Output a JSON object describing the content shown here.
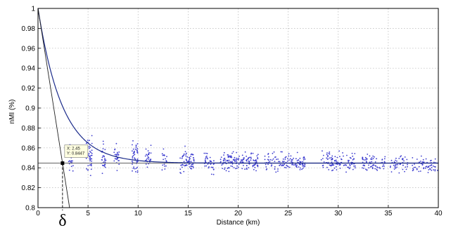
{
  "chart_data": {
    "type": "scatter",
    "xlabel": "Distance (km)",
    "ylabel": "nMI (%)",
    "xlim": [
      0,
      40
    ],
    "ylim": [
      0.8,
      1.0
    ],
    "x_ticks": [
      "0",
      "5",
      "10",
      "15",
      "20",
      "25",
      "30",
      "35",
      "40"
    ],
    "y_ticks": [
      "0.8",
      "0.82",
      "0.84",
      "0.86",
      "0.88",
      "0.9",
      "0.92",
      "0.94",
      "0.96",
      "0.98",
      "1"
    ],
    "grid": true,
    "colors": {
      "points": "#3b3bcf",
      "fit": "#1a2a8a",
      "asymptote": "#7a7a7a",
      "tangent": "#222222"
    },
    "fit_curve": {
      "form": "y = c + (1 - c) * exp(-x / delta)",
      "asymptote": 0.8447,
      "delta": 2.45
    },
    "asymptote_line": {
      "y": 0.8447
    },
    "tangent_line": {
      "x": [
        0,
        2.45
      ],
      "y": [
        1.0,
        0.8447
      ]
    },
    "datatip": {
      "x": 2.45,
      "y": 0.8447,
      "x_text": "X: 2.45",
      "y_text": "Y: 0.8447"
    },
    "annotation": "δ",
    "scatter_clusters": [
      {
        "x": [
          3.0,
          3.6
        ],
        "center": 0.848,
        "spread": 0.012,
        "n": 25
      },
      {
        "x": [
          4.8,
          5.4
        ],
        "center": 0.852,
        "spread": 0.016,
        "n": 45
      },
      {
        "x": [
          6.3,
          6.8
        ],
        "center": 0.851,
        "spread": 0.013,
        "n": 30
      },
      {
        "x": [
          7.6,
          8.1
        ],
        "center": 0.85,
        "spread": 0.011,
        "n": 25
      },
      {
        "x": [
          9.4,
          10.0
        ],
        "center": 0.852,
        "spread": 0.013,
        "n": 50
      },
      {
        "x": [
          10.7,
          11.3
        ],
        "center": 0.85,
        "spread": 0.011,
        "n": 30
      },
      {
        "x": [
          12.4,
          12.9
        ],
        "center": 0.847,
        "spread": 0.01,
        "n": 20
      },
      {
        "x": [
          14.2,
          15.6
        ],
        "center": 0.847,
        "spread": 0.01,
        "n": 70
      },
      {
        "x": [
          16.6,
          17.6
        ],
        "center": 0.846,
        "spread": 0.009,
        "n": 40
      },
      {
        "x": [
          18.2,
          19.6
        ],
        "center": 0.847,
        "spread": 0.009,
        "n": 55
      },
      {
        "x": [
          19.6,
          22.0
        ],
        "center": 0.846,
        "spread": 0.008,
        "n": 90
      },
      {
        "x": [
          22.6,
          26.8
        ],
        "center": 0.845,
        "spread": 0.008,
        "n": 130
      },
      {
        "x": [
          28.3,
          31.7
        ],
        "center": 0.846,
        "spread": 0.008,
        "n": 110
      },
      {
        "x": [
          32.3,
          34.7
        ],
        "center": 0.845,
        "spread": 0.007,
        "n": 70
      },
      {
        "x": [
          35.2,
          37.0
        ],
        "center": 0.844,
        "spread": 0.007,
        "n": 45
      },
      {
        "x": [
          37.4,
          40.0
        ],
        "center": 0.843,
        "spread": 0.007,
        "n": 60
      }
    ]
  }
}
